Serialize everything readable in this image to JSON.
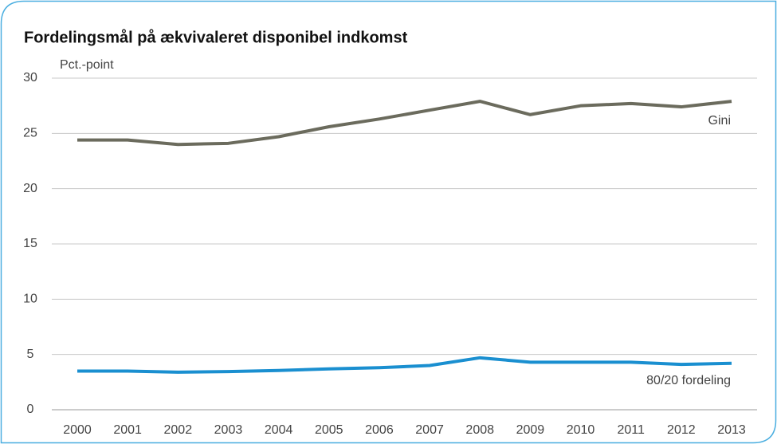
{
  "chart_data": {
    "type": "line",
    "title": "Fordelingsmål på ækvivaleret disponibel indkomst",
    "y_label": "Pct.-point",
    "x": [
      2000,
      2001,
      2002,
      2003,
      2004,
      2005,
      2006,
      2007,
      2008,
      2009,
      2010,
      2011,
      2012,
      2013
    ],
    "series": [
      {
        "name": "Gini",
        "color": "#6b6b5d",
        "values": [
          24.4,
          24.4,
          24.0,
          24.1,
          24.7,
          25.6,
          26.3,
          27.1,
          27.9,
          26.7,
          27.5,
          27.7,
          27.4,
          27.9
        ]
      },
      {
        "name": "80/20 fordeling",
        "color": "#1a8fd0",
        "values": [
          3.5,
          3.5,
          3.4,
          3.45,
          3.55,
          3.7,
          3.8,
          4.0,
          4.7,
          4.3,
          4.3,
          4.3,
          4.1,
          4.2
        ]
      }
    ],
    "xlim": [
      2000,
      2013
    ],
    "ylim": [
      0,
      30
    ],
    "yticks": [
      0,
      5,
      10,
      15,
      20,
      25,
      30
    ],
    "grid": true
  }
}
